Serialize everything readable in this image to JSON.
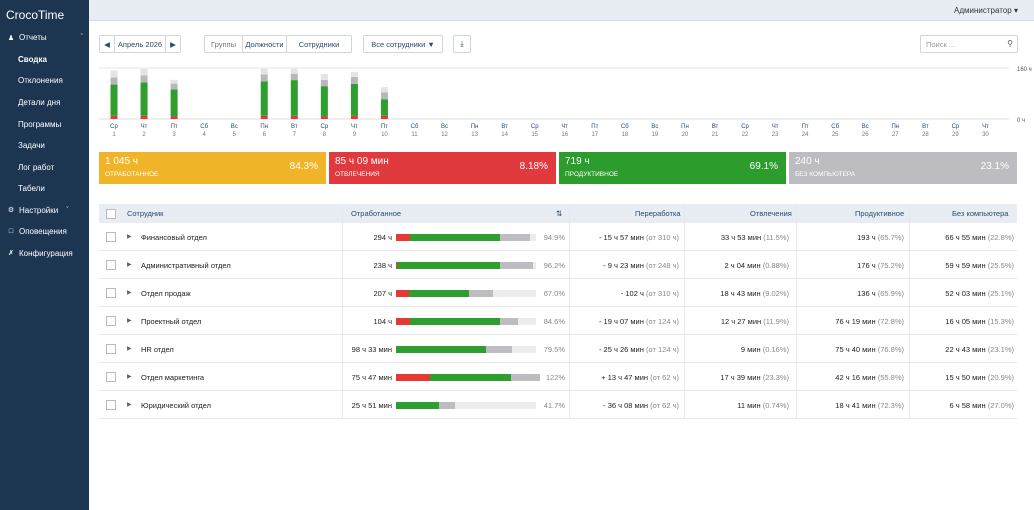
{
  "app": {
    "title": "CrocoTime"
  },
  "sidebar": {
    "reports": {
      "label": "Отчеты"
    },
    "items": [
      "Сводка",
      "Отклонения",
      "Детали дня",
      "Программы",
      "Задачи",
      "Лог работ",
      "Табели"
    ],
    "settings": {
      "label": "Настройки"
    },
    "alerts": {
      "label": "Оповещения"
    },
    "config": {
      "label": "Конфигурация"
    }
  },
  "header": {
    "user": "Администратор"
  },
  "toolbar": {
    "month": "Апрель 2026",
    "tabs": [
      "Группы",
      "Должности",
      "Сотрудники"
    ],
    "filter": "Все сотрудники",
    "search_placeholder": "Поиск ..."
  },
  "chart_data": {
    "type": "bar",
    "ylabel_max": "160 ч",
    "ylabel_min": "0 ч",
    "ylim": [
      0,
      160
    ],
    "categories": [
      {
        "day": "Ср",
        "num": "1"
      },
      {
        "day": "Чт",
        "num": "2"
      },
      {
        "day": "Пт",
        "num": "3"
      },
      {
        "day": "Сб",
        "num": "4"
      },
      {
        "day": "Вс",
        "num": "5"
      },
      {
        "day": "Пн",
        "num": "6"
      },
      {
        "day": "Вт",
        "num": "7"
      },
      {
        "day": "Ср",
        "num": "8"
      },
      {
        "day": "Чт",
        "num": "9"
      },
      {
        "day": "Пт",
        "num": "10"
      },
      {
        "day": "Сб",
        "num": "11"
      },
      {
        "day": "Вс",
        "num": "12"
      },
      {
        "day": "Пн",
        "num": "13"
      },
      {
        "day": "Вт",
        "num": "14"
      },
      {
        "day": "Ср",
        "num": "15"
      },
      {
        "day": "Чт",
        "num": "16"
      },
      {
        "day": "Пт",
        "num": "17"
      },
      {
        "day": "Сб",
        "num": "18"
      },
      {
        "day": "Вс",
        "num": "19"
      },
      {
        "day": "Пн",
        "num": "20"
      },
      {
        "day": "Вт",
        "num": "21"
      },
      {
        "day": "Ср",
        "num": "22"
      },
      {
        "day": "Чт",
        "num": "23"
      },
      {
        "day": "Пт",
        "num": "24"
      },
      {
        "day": "Сб",
        "num": "25"
      },
      {
        "day": "Вс",
        "num": "26"
      },
      {
        "day": "Пн",
        "num": "27"
      },
      {
        "day": "Вт",
        "num": "28"
      },
      {
        "day": "Ср",
        "num": "29"
      },
      {
        "day": "Чт",
        "num": "30"
      }
    ],
    "series": [
      {
        "color": "#e53935",
        "values": [
          10,
          10,
          8,
          0,
          0,
          10,
          10,
          8,
          10,
          10,
          0,
          0,
          0,
          0,
          0,
          0,
          0,
          0,
          0,
          0,
          0,
          0,
          0,
          0,
          0,
          0,
          0,
          0,
          0,
          0
        ]
      },
      {
        "color": "#2e9e2e",
        "values": [
          98,
          105,
          85,
          0,
          0,
          108,
          112,
          95,
          100,
          52,
          0,
          0,
          0,
          0,
          0,
          0,
          0,
          0,
          0,
          0,
          0,
          0,
          0,
          0,
          0,
          0,
          0,
          0,
          0,
          0
        ]
      },
      {
        "color": "#b8b8bc",
        "values": [
          22,
          22,
          18,
          0,
          0,
          22,
          20,
          20,
          22,
          22,
          0,
          0,
          0,
          0,
          0,
          0,
          0,
          0,
          0,
          0,
          0,
          0,
          0,
          0,
          0,
          0,
          0,
          0,
          0,
          0
        ]
      },
      {
        "color": "#e4e4e4",
        "values": [
          22,
          20,
          12,
          0,
          0,
          18,
          16,
          18,
          16,
          16,
          0,
          0,
          0,
          0,
          0,
          0,
          0,
          0,
          0,
          0,
          0,
          0,
          0,
          0,
          0,
          0,
          0,
          0,
          0,
          0
        ]
      }
    ]
  },
  "summary": [
    {
      "value": "1 045 ч",
      "label": "Отработанное",
      "pct": "84.3%",
      "color": "#f0b429"
    },
    {
      "value": "85 ч 09 мин",
      "label": "Отвлечения",
      "pct": "8.18%",
      "color": "#e0393e"
    },
    {
      "value": "719 ч",
      "label": "Продуктивное",
      "pct": "69.1%",
      "color": "#2c9c2c"
    },
    {
      "value": "240 ч",
      "label": "Без компьютера",
      "pct": "23.1%",
      "color": "#bdbdc1"
    }
  ],
  "table": {
    "columns": [
      "Сотрудник",
      "Отработанное",
      "Переработка",
      "Отвлечения",
      "Продуктивное",
      "Без компьютера"
    ],
    "rows": [
      {
        "name": "Финансовый отдел",
        "worked": "294 ч",
        "pct": "94.9%",
        "bar": [
          0.1,
          0.64,
          0.22
        ],
        "over": "- 15 ч 57 мин",
        "over_of": "(от 310 ч)",
        "dist": "33 ч 53 мин",
        "dist_pct": "(11.5%)",
        "prod": "193 ч",
        "prod_pct": "(65.7%)",
        "nopc": "66 ч 55 мин",
        "nopc_pct": "(22.8%)"
      },
      {
        "name": "Административный отдел",
        "worked": "238 ч",
        "pct": "96.2%",
        "bar": [
          0.01,
          0.73,
          0.24
        ],
        "over": "- 9 ч 23 мин",
        "over_of": "(от 248 ч)",
        "dist": "2 ч 04 мин",
        "dist_pct": "(0.88%)",
        "prod": "176 ч",
        "prod_pct": "(75.2%)",
        "nopc": "59 ч 59 мин",
        "nopc_pct": "(25.5%)"
      },
      {
        "name": "Отдел продаж",
        "worked": "207 ч",
        "pct": "67.0%",
        "bar": [
          0.09,
          0.43,
          0.17
        ],
        "over": "- 102 ч",
        "over_of": "(от 310 ч)",
        "dist": "18 ч 43 мин",
        "dist_pct": "(9.02%)",
        "prod": "136 ч",
        "prod_pct": "(65.9%)",
        "nopc": "52 ч 03 мин",
        "nopc_pct": "(25.1%)"
      },
      {
        "name": "Проектный отдел",
        "worked": "104 ч",
        "pct": "84.6%",
        "bar": [
          0.1,
          0.64,
          0.13
        ],
        "over": "- 19 ч 07 мин",
        "over_of": "(от 124 ч)",
        "dist": "12 ч 27 мин",
        "dist_pct": "(11.9%)",
        "prod": "76 ч 19 мин",
        "prod_pct": "(72.8%)",
        "nopc": "16 ч 05 мин",
        "nopc_pct": "(15.3%)"
      },
      {
        "name": "HR отдел",
        "worked": "98 ч 33 мин",
        "pct": "79.5%",
        "bar": [
          0.0,
          0.64,
          0.19
        ],
        "over": "- 25 ч 26 мин",
        "over_of": "(от 124 ч)",
        "dist": "9 мин",
        "dist_pct": "(0.16%)",
        "prod": "75 ч 40 мин",
        "prod_pct": "(76.8%)",
        "nopc": "22 ч 43 мин",
        "nopc_pct": "(23.1%)"
      },
      {
        "name": "Отдел маркетинга",
        "worked": "75 ч 47 мин",
        "pct": "122%",
        "bar": [
          0.24,
          0.58,
          0.21
        ],
        "over": "+ 13 ч 47 мин",
        "over_of": "(от 62 ч)",
        "dist": "17 ч 39 мин",
        "dist_pct": "(23.3%)",
        "prod": "42 ч 16 мин",
        "prod_pct": "(55.8%)",
        "nopc": "15 ч 50 мин",
        "nopc_pct": "(20.9%)"
      },
      {
        "name": "Юридический отдел",
        "worked": "25 ч 51 мин",
        "pct": "41.7%",
        "bar": [
          0.0,
          0.31,
          0.11
        ],
        "over": "- 36 ч 08 мин",
        "over_of": "(от 62 ч)",
        "dist": "11 мин",
        "dist_pct": "(0.74%)",
        "prod": "18 ч 41 мин",
        "prod_pct": "(72.3%)",
        "nopc": "6 ч 58 мин",
        "nopc_pct": "(27.0%)"
      }
    ]
  }
}
